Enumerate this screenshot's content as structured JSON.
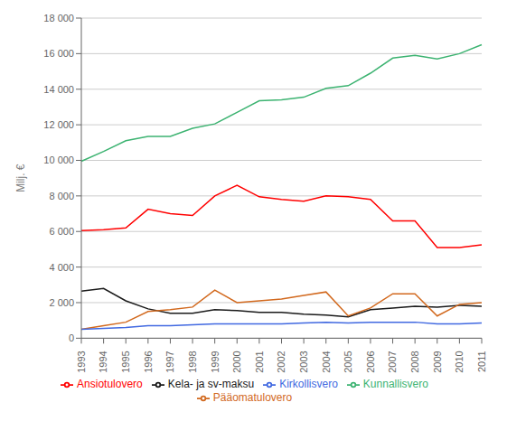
{
  "chart_data": {
    "type": "line",
    "y_label": "Milj. €",
    "categories": [
      "1993",
      "1994",
      "1995",
      "1996",
      "1997",
      "1998",
      "1999",
      "2000",
      "2001",
      "2002",
      "2003",
      "2004",
      "2005",
      "2006",
      "2007",
      "2008",
      "2009",
      "2010",
      "2011"
    ],
    "series": [
      {
        "name": "Kunnallisvero",
        "color": "#3CB371",
        "values": [
          9950,
          10500,
          11100,
          11350,
          11350,
          11800,
          12050,
          12700,
          13350,
          13400,
          13550,
          14050,
          14200,
          14900,
          15750,
          15900,
          15700,
          16000,
          16500
        ]
      },
      {
        "name": "Ansiotulovero",
        "color": "#FF0000",
        "values": [
          6050,
          6100,
          6200,
          7250,
          7000,
          6900,
          8000,
          8600,
          7950,
          7800,
          7700,
          8000,
          7950,
          7800,
          6600,
          6600,
          5100,
          5100,
          5250
        ]
      },
      {
        "name": "Kela- ja sv-maksu",
        "color": "#1a1a1a",
        "values": [
          2650,
          2800,
          2100,
          1650,
          1400,
          1400,
          1600,
          1550,
          1450,
          1450,
          1350,
          1300,
          1200,
          1600,
          1700,
          1800,
          1750,
          1850,
          1800
        ]
      },
      {
        "name": "Pääomatulovero",
        "color": "#D2691E",
        "values": [
          500,
          700,
          900,
          1500,
          1600,
          1750,
          2700,
          2000,
          2100,
          2200,
          2400,
          2600,
          1250,
          1700,
          2500,
          2500,
          1250,
          1900,
          2000
        ]
      },
      {
        "name": "Kirkollisvero",
        "color": "#4169E1",
        "values": [
          500,
          550,
          600,
          700,
          700,
          750,
          800,
          800,
          800,
          800,
          850,
          900,
          850,
          900,
          900,
          900,
          800,
          800,
          850
        ]
      }
    ],
    "ylim": [
      0,
      18000
    ],
    "yticks": [
      0,
      {
        "value": 2000,
        "label": "2 000"
      },
      {
        "value": 4000,
        "label": "4 000"
      },
      {
        "value": 6000,
        "label": "6 000"
      },
      {
        "value": 8000,
        "label": "8 000"
      },
      {
        "value": 10000,
        "label": "10 000"
      },
      {
        "value": 12000,
        "label": "12 000"
      },
      {
        "value": 14000,
        "label": "14 000"
      },
      {
        "value": 16000,
        "label": "16 000"
      },
      {
        "value": 18000,
        "label": "18 000"
      }
    ],
    "grid": true,
    "legend": "bottom"
  }
}
